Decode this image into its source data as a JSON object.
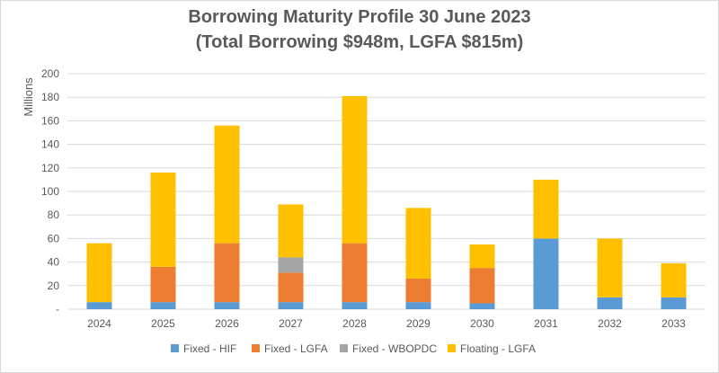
{
  "chart_data": {
    "type": "bar",
    "stacked": true,
    "title": "Borrowing Maturity Profile 30 June 2023",
    "subtitle": "(Total Borrowing $948m, LGFA $815m)",
    "xlabel": "",
    "ylabel": "Millions",
    "ylim": [
      0,
      200
    ],
    "yticks": [
      0,
      20,
      40,
      60,
      80,
      100,
      120,
      140,
      160,
      180,
      200
    ],
    "ytick_labels": [
      "-",
      "20",
      "40",
      "60",
      "80",
      "100",
      "120",
      "140",
      "160",
      "180",
      "200"
    ],
    "grid": true,
    "legend_position": "bottom",
    "categories": [
      "2024",
      "2025",
      "2026",
      "2027",
      "2028",
      "2029",
      "2030",
      "2031",
      "2032",
      "2033"
    ],
    "series": [
      {
        "name": "Fixed - HIF",
        "color": "#5b9bd5",
        "values": [
          6,
          6,
          6,
          6,
          6,
          6,
          5,
          60,
          10,
          10
        ]
      },
      {
        "name": "Fixed - LGFA",
        "color": "#ed7d31",
        "values": [
          0,
          30,
          50,
          25,
          50,
          20,
          30,
          0,
          0,
          0
        ]
      },
      {
        "name": "Fixed - WBOPDC",
        "color": "#a5a5a5",
        "values": [
          0,
          0,
          0,
          13,
          0,
          0,
          0,
          0,
          0,
          0
        ]
      },
      {
        "name": "Floating - LGFA",
        "color": "#ffc000",
        "values": [
          50,
          80,
          100,
          45,
          125,
          60,
          20,
          50,
          50,
          29
        ]
      }
    ]
  }
}
